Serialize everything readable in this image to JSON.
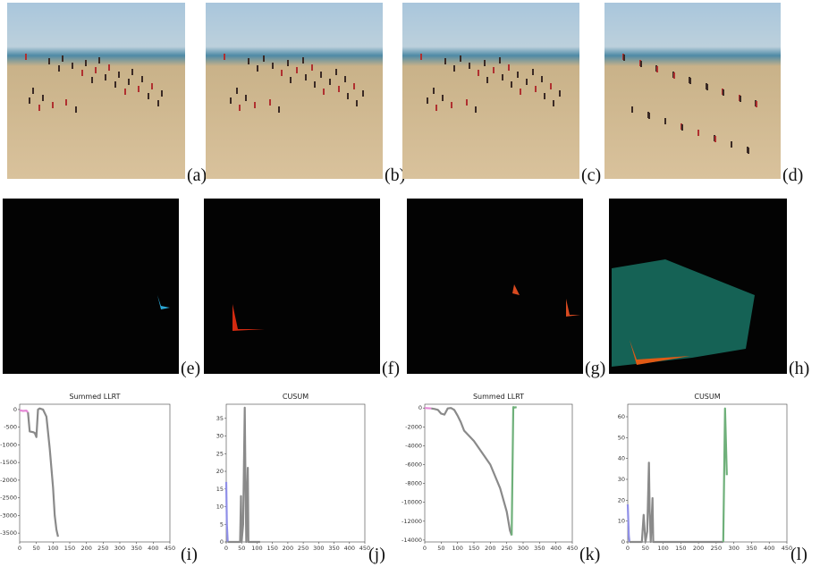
{
  "panel_labels": [
    "(a)",
    "(b)",
    "(c)",
    "(d)",
    "(e)",
    "(f)",
    "(g)",
    "(h)",
    "(i)",
    "(j)",
    "(k)",
    "(l)"
  ],
  "chart_data": [
    {
      "type": "line",
      "title": "Summed LLRT",
      "xlim": [
        0,
        450
      ],
      "xticks": [
        0,
        50,
        100,
        150,
        200,
        250,
        300,
        350,
        400,
        450
      ],
      "ylim": [
        -3750,
        150
      ],
      "yticks": [
        0,
        -500,
        -1000,
        -1500,
        -2000,
        -2500,
        -3000,
        -3500
      ],
      "series": [
        {
          "color": "#e58ad6",
          "x": [
            0,
            10,
            20,
            25
          ],
          "values": [
            -20,
            -40,
            -30,
            -80
          ]
        },
        {
          "color": "#8a8a8a",
          "x": [
            25,
            30,
            40,
            45,
            50,
            55,
            60,
            70,
            80,
            90,
            100,
            105,
            110,
            115
          ],
          "values": [
            -80,
            -620,
            -640,
            -660,
            -780,
            0,
            30,
            0,
            -200,
            -1100,
            -2200,
            -3000,
            -3400,
            -3600
          ]
        }
      ]
    },
    {
      "type": "line",
      "title": "CUSUM",
      "xlim": [
        0,
        450
      ],
      "xticks": [
        0,
        50,
        100,
        150,
        200,
        250,
        300,
        350,
        400,
        450
      ],
      "ylim": [
        0,
        39
      ],
      "yticks": [
        0,
        5,
        10,
        15,
        20,
        25,
        30,
        35
      ],
      "series": [
        {
          "color": "#8f8fe8",
          "x": [
            0,
            2,
            5
          ],
          "values": [
            17,
            5,
            0
          ]
        },
        {
          "color": "#8a8a8a",
          "x": [
            5,
            40,
            45,
            48,
            50,
            55,
            60,
            62,
            65,
            70,
            72,
            75,
            80,
            110
          ],
          "values": [
            0,
            0,
            0,
            13,
            0,
            5,
            38,
            20,
            0,
            21,
            0,
            0,
            0,
            0
          ]
        }
      ]
    },
    {
      "type": "line",
      "title": "Summed LLRT",
      "xlim": [
        0,
        450
      ],
      "xticks": [
        0,
        50,
        100,
        150,
        200,
        250,
        300,
        350,
        400,
        450
      ],
      "ylim": [
        -14200,
        400
      ],
      "yticks": [
        0,
        -2000,
        -4000,
        -6000,
        -8000,
        -10000,
        -12000,
        -14000
      ],
      "series": [
        {
          "color": "#e58ad6",
          "x": [
            0,
            20
          ],
          "values": [
            0,
            -50
          ]
        },
        {
          "color": "#8a8a8a",
          "x": [
            20,
            30,
            40,
            50,
            60,
            70,
            80,
            90,
            100,
            110,
            120,
            150,
            200,
            230,
            250,
            260,
            265
          ],
          "values": [
            -50,
            -100,
            -200,
            -600,
            -700,
            -50,
            0,
            -200,
            -800,
            -1500,
            -2400,
            -3500,
            -6000,
            -8500,
            -11000,
            -13000,
            -13500
          ]
        },
        {
          "color": "#6fb07a",
          "x": [
            265,
            270,
            275,
            280
          ],
          "values": [
            -13500,
            100,
            50,
            100
          ]
        }
      ]
    },
    {
      "type": "line",
      "title": "CUSUM",
      "xlim": [
        0,
        450
      ],
      "xticks": [
        0,
        50,
        100,
        150,
        200,
        250,
        300,
        350,
        400,
        450
      ],
      "ylim": [
        0,
        66
      ],
      "yticks": [
        0,
        10,
        20,
        30,
        40,
        50,
        60
      ],
      "series": [
        {
          "color": "#8f8fe8",
          "x": [
            0,
            3,
            5
          ],
          "values": [
            18,
            3,
            0
          ]
        },
        {
          "color": "#8a8a8a",
          "x": [
            5,
            40,
            45,
            50,
            55,
            60,
            62,
            65,
            70,
            72,
            75,
            80,
            270
          ],
          "values": [
            0,
            0,
            13,
            0,
            5,
            38,
            15,
            0,
            21,
            0,
            0,
            0,
            0
          ]
        },
        {
          "color": "#6fb07a",
          "x": [
            270,
            275,
            280
          ],
          "values": [
            0,
            64,
            32
          ]
        }
      ]
    }
  ]
}
